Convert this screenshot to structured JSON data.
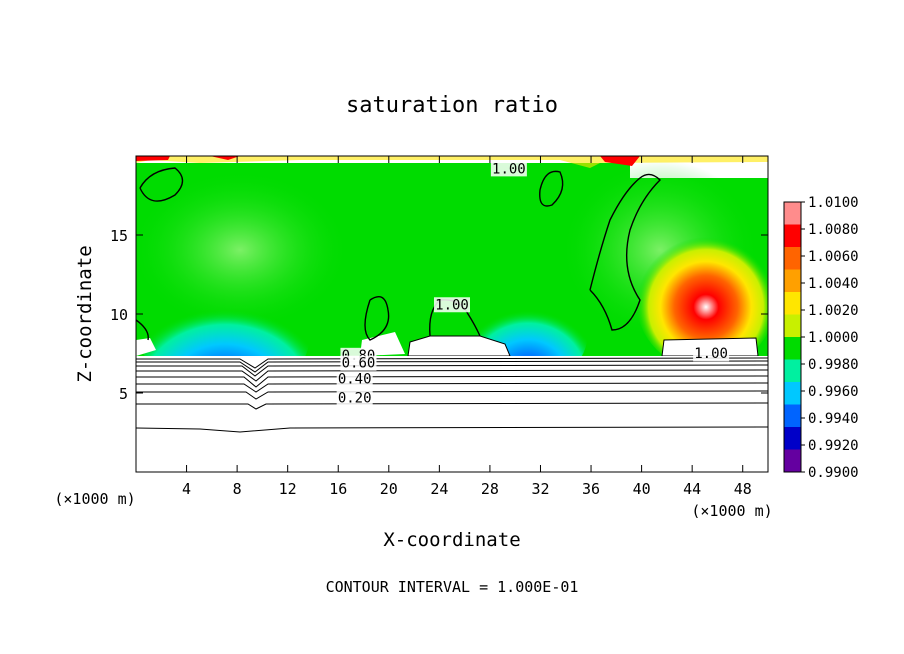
{
  "chart_data": {
    "type": "heatmap",
    "title": "saturation ratio",
    "xlabel": "X-coordinate",
    "ylabel": "Z-coordinate",
    "x_unit": "(×1000 m)",
    "xlim": [
      0,
      50
    ],
    "ylim": [
      0,
      20
    ],
    "x_ticks": [
      4,
      8,
      12,
      16,
      20,
      24,
      28,
      32,
      36,
      40,
      44,
      48
    ],
    "y_ticks": [
      5,
      10,
      15
    ],
    "colorbar": {
      "min": 0.99,
      "max": 1.01,
      "tick_labels": [
        "1.0100",
        "1.0080",
        "1.0060",
        "1.0040",
        "1.0020",
        "1.0000",
        "0.9980",
        "0.9960",
        "0.9940",
        "0.9920",
        "0.9900"
      ],
      "colors": [
        "#ff8c8c",
        "#ff0000",
        "#ff6400",
        "#ffa000",
        "#ffe600",
        "#c8f000",
        "#00dc00",
        "#00f0a0",
        "#00c8ff",
        "#0064ff",
        "#0000c8",
        "#6400a0"
      ]
    },
    "contour_labels": [
      {
        "text": "1.00",
        "x": 29.5,
        "z": 18.9
      },
      {
        "text": "1.00",
        "x": 25.0,
        "z": 10.3
      },
      {
        "text": "1.00",
        "x": 45.5,
        "z": 7.2
      },
      {
        "text": "0.80",
        "x": 17.6,
        "z": 7.1
      },
      {
        "text": "0.60",
        "x": 17.6,
        "z": 6.6
      },
      {
        "text": "0.40",
        "x": 17.3,
        "z": 5.6
      },
      {
        "text": "0.20",
        "x": 17.3,
        "z": 4.4
      }
    ],
    "footer": "CONTOUR INTERVAL = 1.000E-01"
  }
}
